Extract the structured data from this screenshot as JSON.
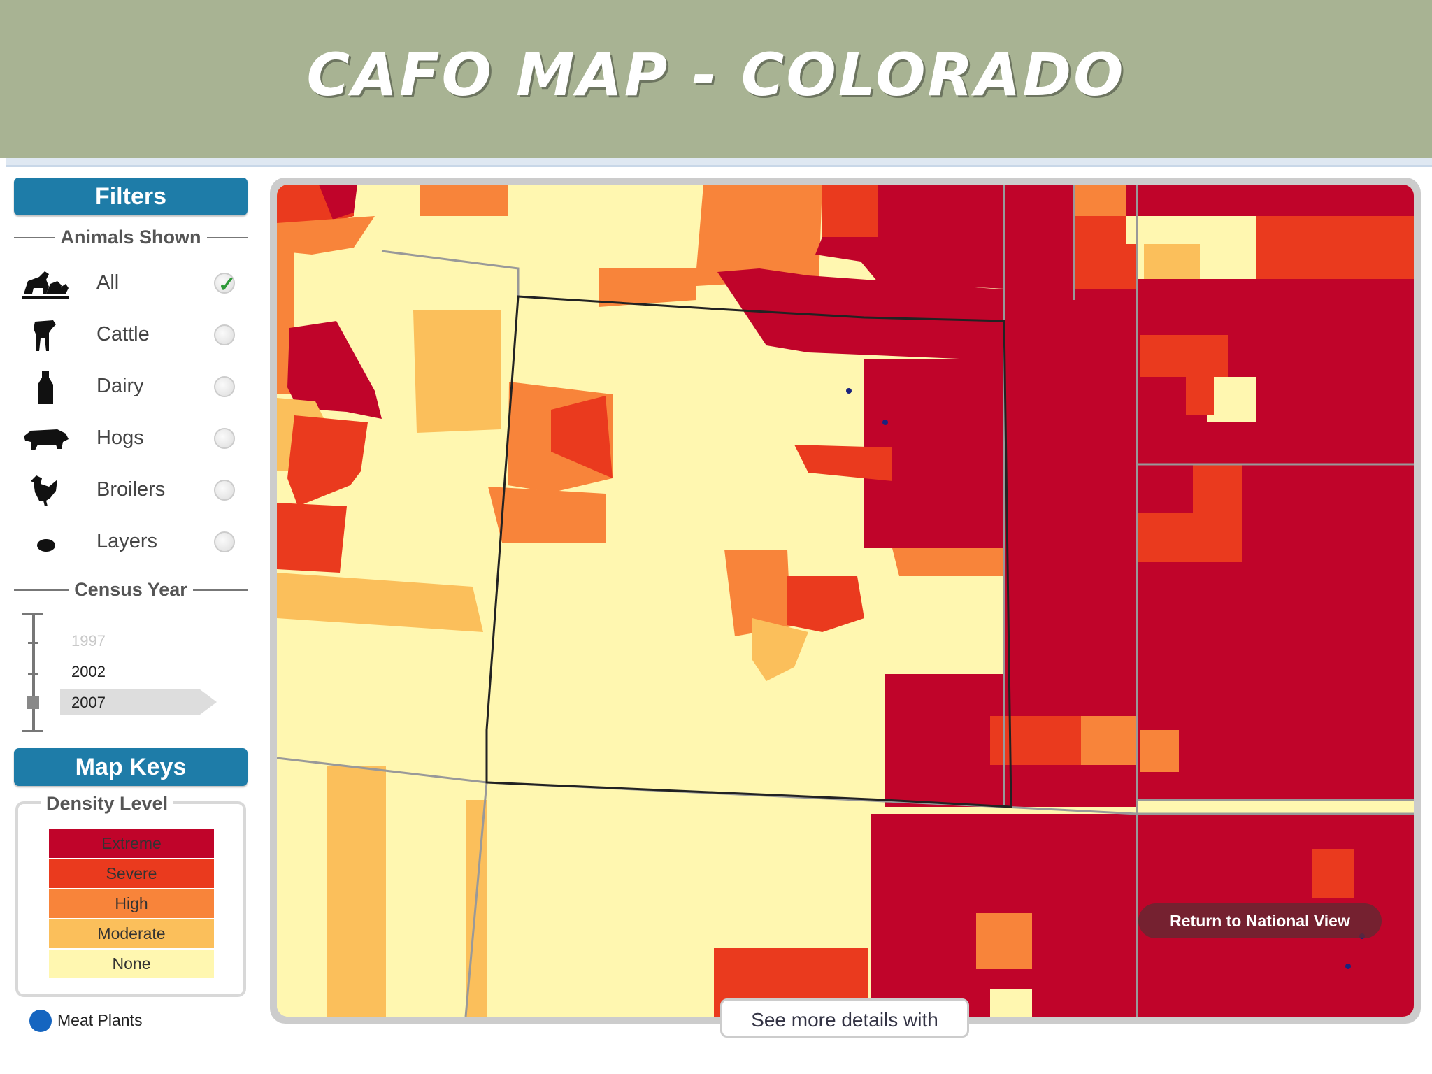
{
  "title": "CAFO MAP - COLORADO",
  "filters": {
    "header": "Filters",
    "animals_label": "Animals Shown",
    "animals": [
      {
        "label": "All",
        "icon": "farm-animals-icon",
        "selected": true
      },
      {
        "label": "Cattle",
        "icon": "cow-icon",
        "selected": false
      },
      {
        "label": "Dairy",
        "icon": "milk-bottle-icon",
        "selected": false
      },
      {
        "label": "Hogs",
        "icon": "hog-icon",
        "selected": false
      },
      {
        "label": "Broilers",
        "icon": "chicken-icon",
        "selected": false
      },
      {
        "label": "Layers",
        "icon": "egg-icon",
        "selected": false
      }
    ],
    "census_label": "Census Year",
    "years": [
      "1997",
      "2002",
      "2007"
    ],
    "selected_year": "2007"
  },
  "map_keys": {
    "header": "Map Keys",
    "density_label": "Density Level",
    "levels": [
      {
        "label": "Extreme",
        "color": "#c0042a"
      },
      {
        "label": "Severe",
        "color": "#ea3a1e"
      },
      {
        "label": "High",
        "color": "#f8843a"
      },
      {
        "label": "Moderate",
        "color": "#fbbf5b"
      },
      {
        "label": "None",
        "color": "#fff7b0"
      }
    ],
    "meat_plants_label": "Meat Plants",
    "meat_plants_color": "#1565c0"
  },
  "map": {
    "return_button": "Return to National View",
    "details_tab": "See more details with"
  }
}
